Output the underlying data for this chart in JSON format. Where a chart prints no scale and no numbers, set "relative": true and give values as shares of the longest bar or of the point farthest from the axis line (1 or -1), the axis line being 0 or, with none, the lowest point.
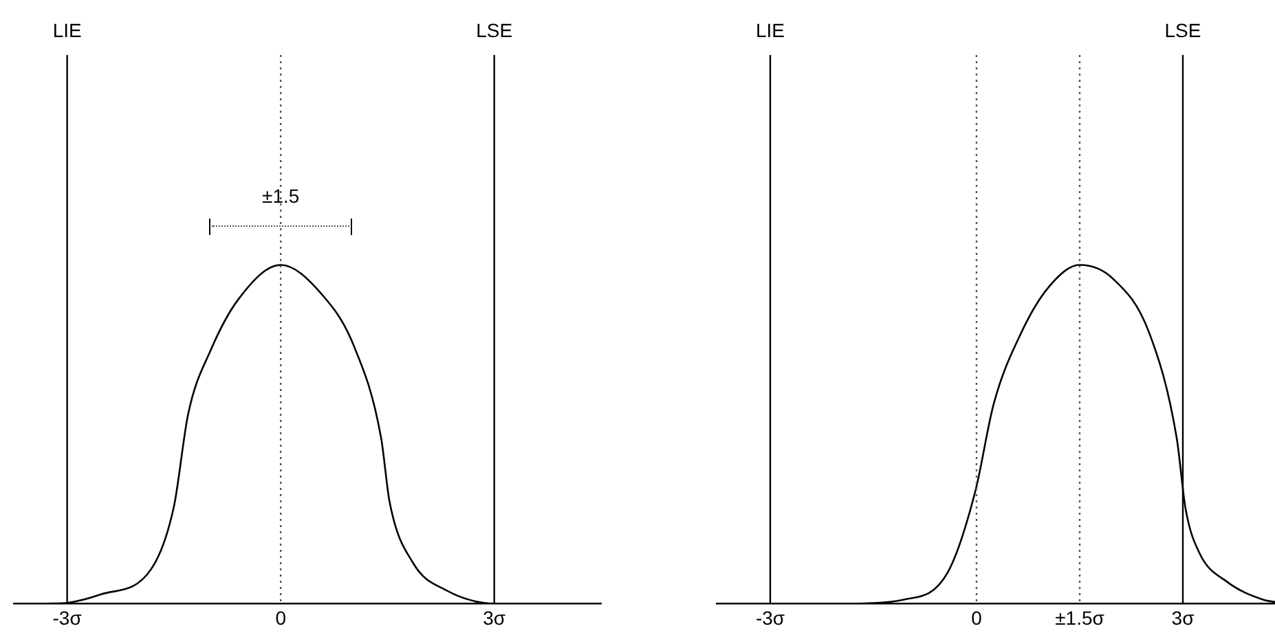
{
  "chart_data": [
    {
      "type": "line",
      "relative": true,
      "x": [
        -3.3,
        -2.98,
        -2.53,
        -1.82,
        -1.5,
        -1.3,
        -0.98,
        -0.59,
        0,
        0.57,
        1.02,
        1.41,
        1.53,
        1.86,
        2.31,
        3.02,
        3.27
      ],
      "series": [
        {
          "color": "#000000",
          "values": [
            0,
            0.003,
            0.027,
            0.102,
            0.287,
            0.56,
            0.75,
            0.9,
            1,
            0.915,
            0.765,
            0.49,
            0.3,
            0.12,
            0.041,
            0,
            0
          ]
        }
      ],
      "xlim": [
        -3.75,
        4.5
      ],
      "xticks": [
        {
          "value": -3,
          "label": "-3σ"
        },
        0,
        {
          "value": 3,
          "label": "3σ"
        }
      ],
      "ref_lines": [
        {
          "axis": "x",
          "value": -3,
          "label": "LIE",
          "color": "#000000",
          "line_style": "solid"
        },
        {
          "axis": "x",
          "value": 3,
          "label": "LSE",
          "color": "#000000",
          "line_style": "solid"
        },
        {
          "axis": "x",
          "value": 0,
          "color": "#555555",
          "line_style": "dotted"
        }
      ],
      "annotations": [
        {
          "text": "±1.5",
          "x": 0,
          "y": 1.2
        }
      ],
      "tick_labels": "x",
      "grid": false,
      "legend": false,
      "marker": "none",
      "line_style": "solid"
    },
    {
      "type": "line",
      "relative": true,
      "x": [
        -1.75,
        -1.08,
        -0.42,
        -0.02,
        0.25,
        0.65,
        1.05,
        1.5,
        1.98,
        2.51,
        2.91,
        3.04,
        3.24,
        3.64,
        4.18,
        4.34
      ],
      "series": [
        {
          "color": "#000000",
          "values": [
            0,
            0.011,
            0.092,
            0.33,
            0.59,
            0.8,
            0.935,
            1,
            0.96,
            0.8,
            0.49,
            0.28,
            0.15,
            0.065,
            0.011,
            0.005
          ]
        }
      ],
      "xlim": [
        -3.78,
        4.34
      ],
      "xticks": [
        {
          "value": -3,
          "label": "-3σ"
        },
        0,
        {
          "value": 1.5,
          "label": "±1.5σ"
        },
        {
          "value": 3,
          "label": "3σ"
        }
      ],
      "ref_lines": [
        {
          "axis": "x",
          "value": -3,
          "label": "LIE",
          "color": "#000000",
          "line_style": "solid"
        },
        {
          "axis": "x",
          "value": 3,
          "label": "LSE",
          "color": "#000000",
          "line_style": "solid"
        },
        {
          "axis": "x",
          "value": 0,
          "color": "#555555",
          "line_style": "dotted"
        },
        {
          "axis": "x",
          "value": 1.5,
          "color": "#555555",
          "line_style": "dotted"
        }
      ],
      "tick_labels": "x",
      "grid": false,
      "legend": false,
      "marker": "none",
      "line_style": "solid"
    }
  ]
}
